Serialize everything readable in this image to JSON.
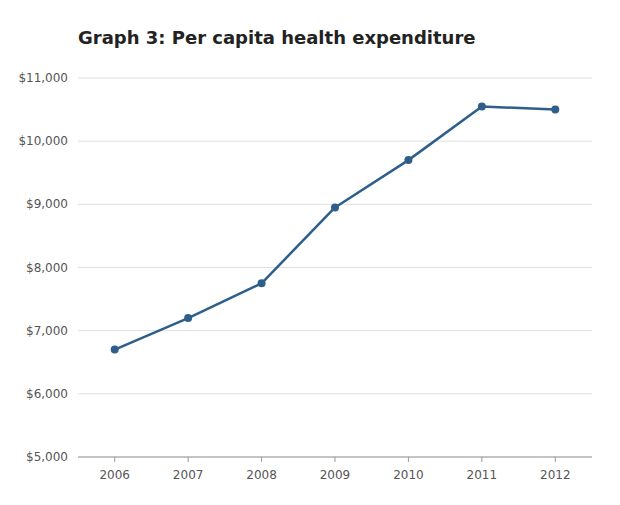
{
  "chart_data": {
    "type": "line",
    "title": "Graph 3:  Per capita health expenditure",
    "x": [
      2006,
      2007,
      2008,
      2009,
      2010,
      2011,
      2012
    ],
    "values": [
      6700,
      7200,
      7750,
      8950,
      9700,
      10550,
      10500
    ],
    "color": "#2e5f8a",
    "marker": "circle",
    "xlim": [
      2005.5,
      2012.5
    ],
    "xticks": [
      2006,
      2007,
      2008,
      2009,
      2010,
      2011,
      2012
    ],
    "ylim": [
      5000,
      11000
    ],
    "yticks": [
      {
        "value": 5000,
        "label": "$5,000"
      },
      {
        "value": 6000,
        "label": "$6,000"
      },
      {
        "value": 7000,
        "label": "$7,000"
      },
      {
        "value": 8000,
        "label": "$8,000"
      },
      {
        "value": 9000,
        "label": "$9,000"
      },
      {
        "value": 10000,
        "label": "$10,000"
      },
      {
        "value": 11000,
        "label": "$11,000"
      }
    ],
    "grid": true
  }
}
